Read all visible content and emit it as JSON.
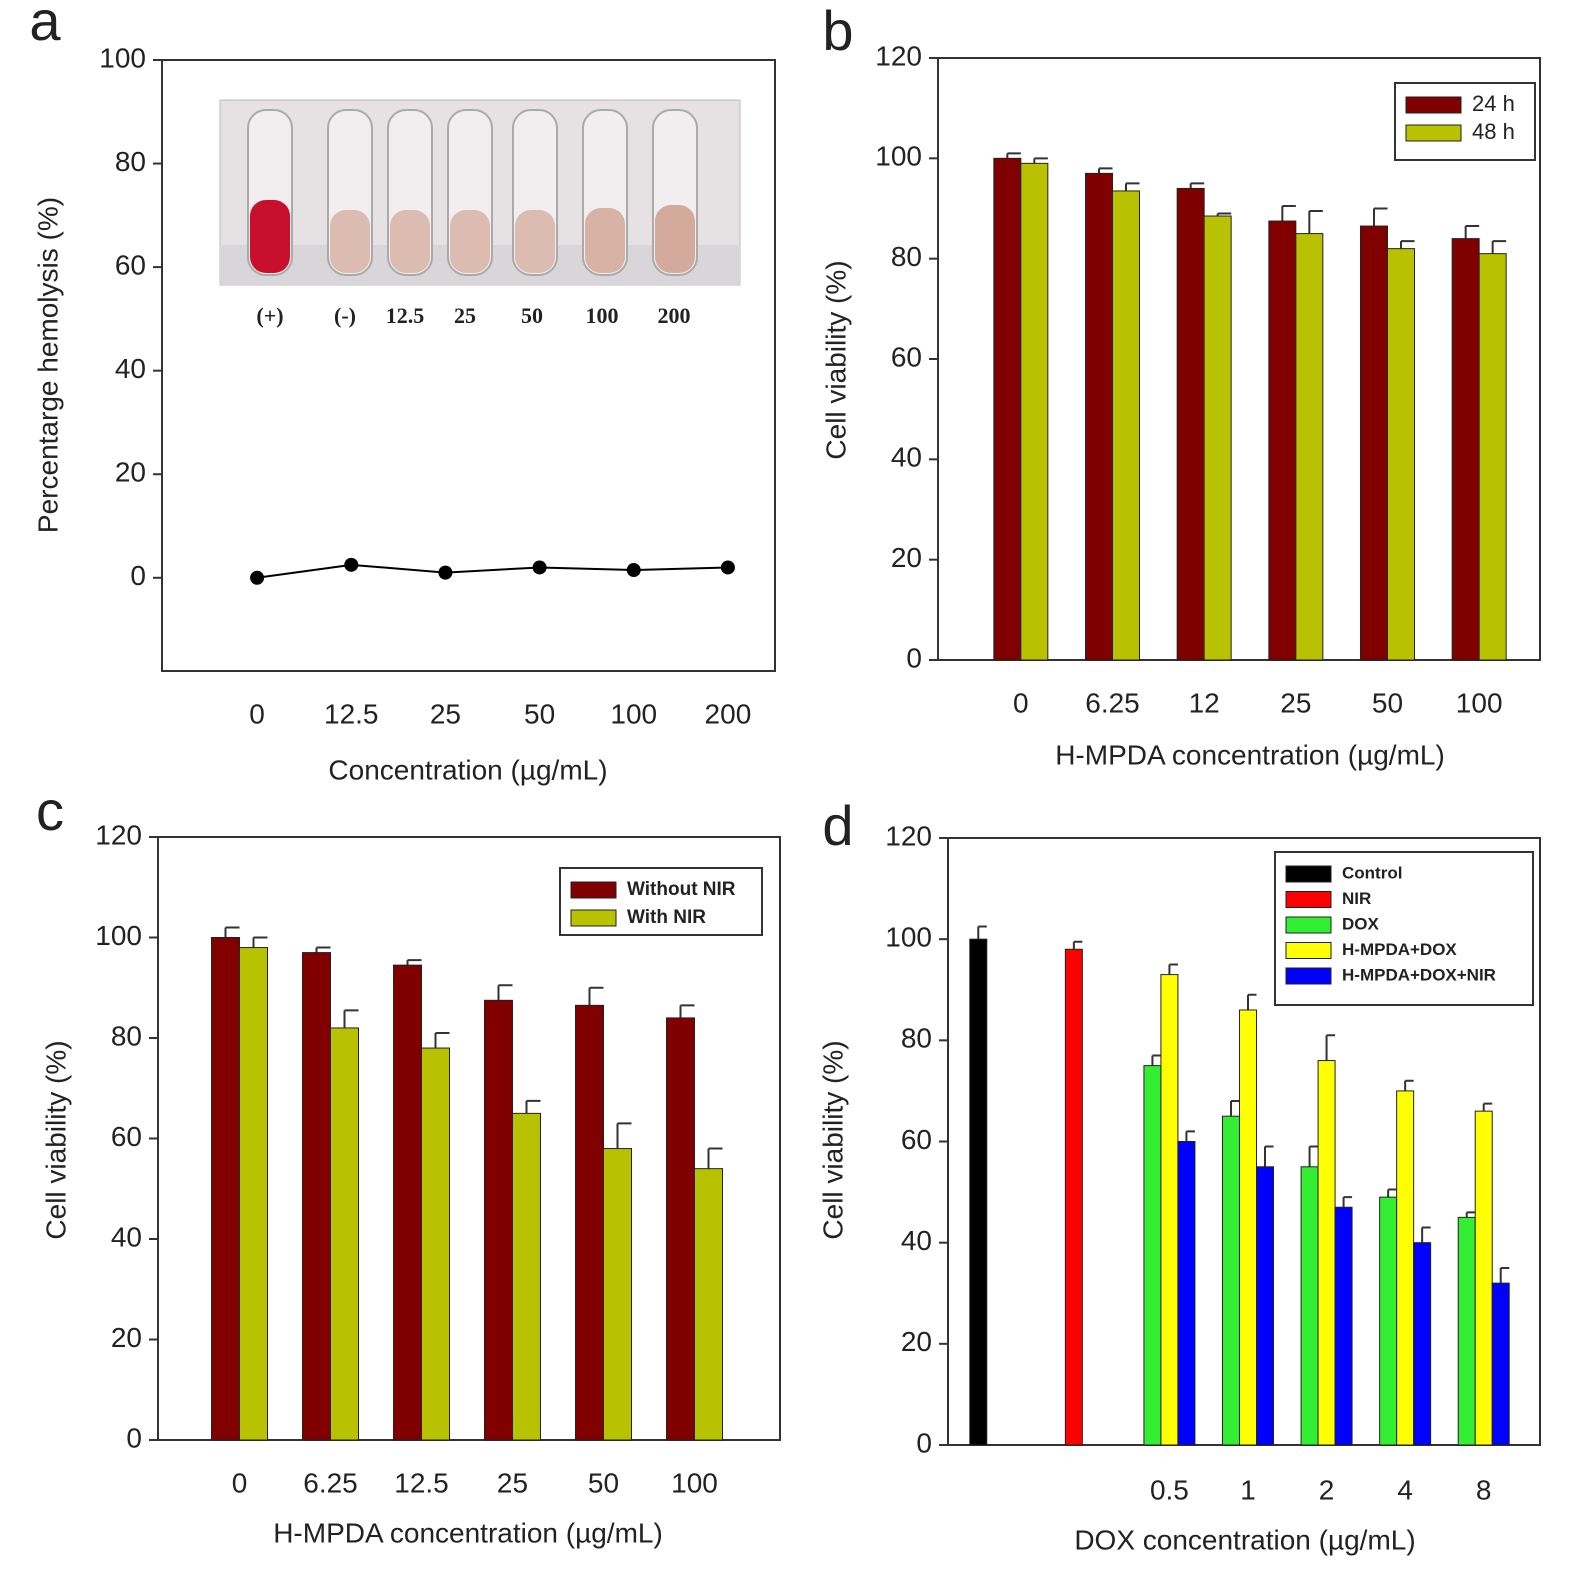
{
  "chart_data": [
    {
      "type": "line",
      "panel": "a",
      "ylabel": "Percentarge hemolysis (%)",
      "xlabel": "Concentration (µg/mL)",
      "categories": [
        "0",
        "12.5",
        "25",
        "50",
        "100",
        "200"
      ],
      "series": [
        {
          "color": "#000000",
          "values": [
            0,
            2.5,
            1,
            2,
            1.5,
            2
          ]
        }
      ],
      "ylim": [
        -18,
        100
      ],
      "yticks": [
        0,
        20,
        40,
        60,
        80,
        100
      ],
      "inset_labels": [
        "(+)",
        "(-)",
        "12.5",
        "25",
        "50",
        "100",
        "200"
      ]
    },
    {
      "type": "bar",
      "panel": "b",
      "ylabel": "Cell viability (%)",
      "xlabel": "H-MPDA concentration (µg/mL)",
      "categories": [
        "0",
        "6.25",
        "12",
        "25",
        "50",
        "100"
      ],
      "series": [
        {
          "name": "24 h",
          "color": "#800000",
          "values": [
            100,
            97,
            94,
            87.5,
            86.5,
            84
          ],
          "errors": [
            1,
            1,
            1,
            3,
            3.5,
            2.5
          ]
        },
        {
          "name": "48 h",
          "color": "#b8c200",
          "values": [
            99,
            93.5,
            88.5,
            85,
            82,
            81
          ],
          "errors": [
            1,
            1.5,
            0.5,
            4.5,
            1.5,
            2.5
          ]
        }
      ],
      "ylim": [
        0,
        120
      ],
      "yticks": [
        0,
        20,
        40,
        60,
        80,
        100,
        120
      ],
      "legend": "upper right"
    },
    {
      "type": "bar",
      "panel": "c",
      "ylabel": "Cell viability (%)",
      "xlabel": "H-MPDA concentration (µg/mL)",
      "categories": [
        "0",
        "6.25",
        "12.5",
        "25",
        "50",
        "100"
      ],
      "series": [
        {
          "name": "Without NIR",
          "color": "#800000",
          "values": [
            100,
            97,
            94.5,
            87.5,
            86.5,
            84
          ],
          "errors": [
            2,
            1,
            1,
            3,
            3.5,
            2.5
          ]
        },
        {
          "name": "With NIR",
          "color": "#b8c200",
          "values": [
            98,
            82,
            78,
            65,
            58,
            54
          ],
          "errors": [
            2,
            3.5,
            3,
            2.5,
            5,
            4
          ]
        }
      ],
      "ylim": [
        0,
        120
      ],
      "yticks": [
        0,
        20,
        40,
        60,
        80,
        100,
        120
      ],
      "legend": "upper right"
    },
    {
      "type": "bar",
      "panel": "d",
      "ylabel": "Cell viability (%)",
      "xlabel": "DOX concentration (µg/mL)",
      "categories": [
        null,
        null,
        "0.5",
        "1",
        "2",
        "4",
        "8"
      ],
      "series": [
        {
          "name": "Control",
          "color": "#000000",
          "values": [
            100,
            null,
            null,
            null,
            null,
            null,
            null
          ],
          "errors": [
            2.5,
            null,
            null,
            null,
            null,
            null,
            null
          ]
        },
        {
          "name": "NIR",
          "color": "#ff0000",
          "values": [
            null,
            98,
            null,
            null,
            null,
            null,
            null
          ],
          "errors": [
            null,
            1.5,
            null,
            null,
            null,
            null,
            null
          ]
        },
        {
          "name": "DOX",
          "color": "#33ee33",
          "values": [
            null,
            null,
            75,
            65,
            55,
            49,
            45
          ],
          "errors": [
            null,
            null,
            2,
            3,
            4,
            1.5,
            1
          ]
        },
        {
          "name": "H-MPDA+DOX",
          "color": "#ffff00",
          "values": [
            null,
            null,
            93,
            86,
            76,
            70,
            66
          ],
          "errors": [
            null,
            null,
            2,
            3,
            5,
            2,
            1.5
          ]
        },
        {
          "name": "H-MPDA+DOX+NIR",
          "color": "#0000ff",
          "values": [
            null,
            null,
            60,
            55,
            47,
            40,
            32
          ],
          "errors": [
            null,
            null,
            2,
            4,
            2,
            3,
            3
          ]
        }
      ],
      "ylim": [
        0,
        120
      ],
      "yticks": [
        0,
        20,
        40,
        60,
        80,
        100,
        120
      ],
      "legend": "upper right"
    }
  ]
}
